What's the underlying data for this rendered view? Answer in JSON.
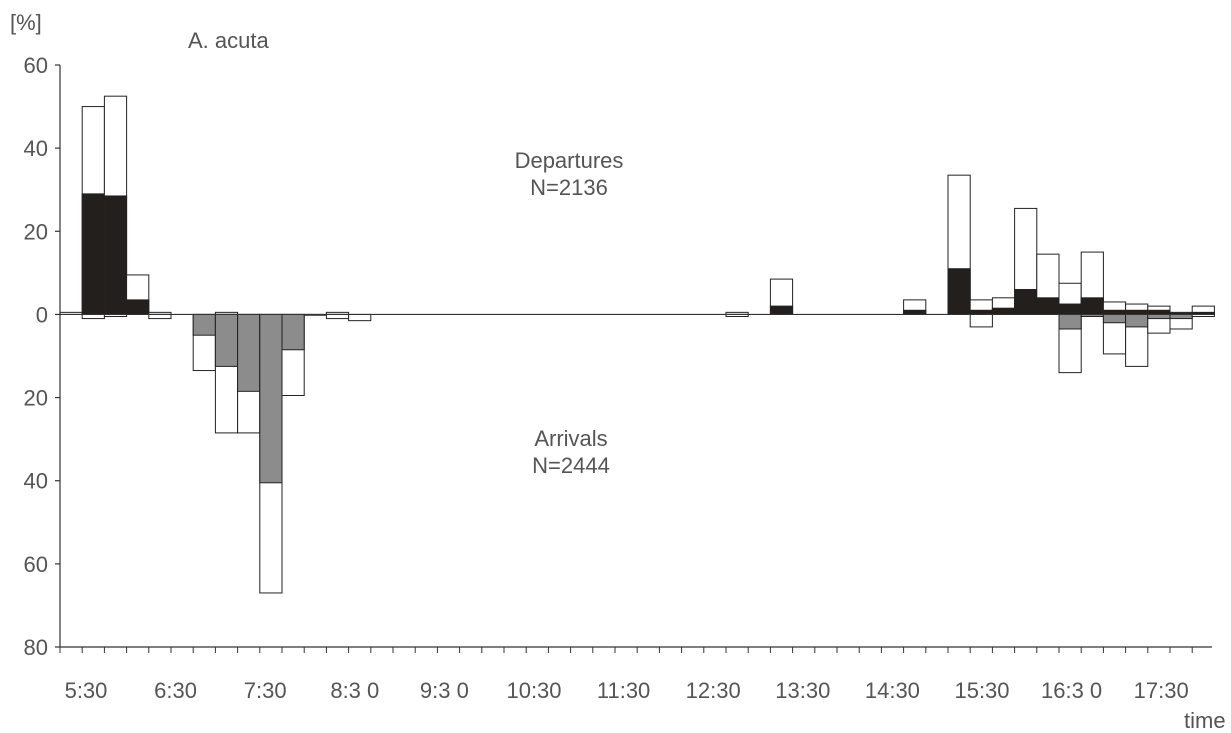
{
  "chart_data": {
    "type": "bar",
    "title": "A. acuta",
    "ylabel": "[%]",
    "xlabel": "time",
    "ylim": [
      -80,
      60
    ],
    "y_ticks": [
      {
        "value": 60,
        "label": "60"
      },
      {
        "value": 40,
        "label": "40"
      },
      {
        "value": 20,
        "label": "20"
      },
      {
        "value": 0,
        "label": "0"
      },
      {
        "value": -20,
        "label": "20"
      },
      {
        "value": -40,
        "label": "40"
      },
      {
        "value": -60,
        "label": "60"
      },
      {
        "value": -80,
        "label": "80"
      }
    ],
    "x_labels": [
      "5:30",
      "6:30",
      "7:30",
      "8:3 0",
      "9:3 0",
      "10:30",
      "11:30",
      "12:30",
      "13:30",
      "14:30",
      "15:30",
      "16:3 0",
      "17:30"
    ],
    "annotations": {
      "departures_label": "Departures",
      "departures_n": "N=2136",
      "arrivals_label": "Arrivals",
      "arrivals_n": "N=2444"
    },
    "series": [
      {
        "values_total": [
          0.5,
          50,
          52.5,
          9.5,
          0.5,
          0,
          0,
          0,
          0,
          0,
          0,
          0.5,
          0,
          0,
          0,
          0,
          0,
          0,
          0,
          0,
          0,
          0,
          0,
          0,
          0,
          0,
          0,
          0,
          0,
          0,
          0,
          0,
          0,
          0,
          0,
          0,
          0,
          0,
          0,
          0,
          0,
          0,
          0,
          0,
          0,
          0,
          0,
          0,
          0,
          0,
          0.5,
          3.5,
          0,
          0,
          0,
          0,
          0,
          0,
          0,
          0,
          0,
          0,
          0,
          0,
          0,
          0,
          0,
          0,
          0,
          0,
          0,
          0,
          0,
          0,
          0,
          0,
          0,
          0,
          0,
          0,
          0,
          0,
          0
        ]
      },
      {
        "values_solid": [
          0,
          29,
          28.5,
          3.5,
          0,
          0,
          0,
          0,
          0,
          0,
          0,
          0,
          0,
          0,
          0,
          0,
          0,
          0,
          0,
          0,
          0,
          0,
          0,
          0,
          0,
          0,
          0,
          0,
          0,
          0,
          0,
          0,
          0,
          0,
          0,
          0,
          0,
          0,
          0,
          0,
          0,
          0,
          0,
          0,
          0,
          0,
          0,
          0,
          0,
          0,
          0,
          0,
          0,
          0,
          0,
          0,
          0,
          0,
          0,
          0,
          0,
          0,
          0,
          0,
          0,
          0,
          0,
          0,
          0,
          0,
          0,
          0,
          0,
          0,
          0,
          0,
          0,
          0,
          0,
          0,
          0,
          0,
          0
        ]
      }
    ],
    "departures": [
      {
        "slot": 0,
        "total": 0.5,
        "solid": 0
      },
      {
        "slot": 1,
        "total": 50,
        "solid": 29
      },
      {
        "slot": 2,
        "total": 52.5,
        "solid": 28.5
      },
      {
        "slot": 3,
        "total": 9.5,
        "solid": 3.5
      },
      {
        "slot": 4,
        "total": 0.5,
        "solid": 0
      },
      {
        "slot": 7,
        "total": 0.5,
        "solid": 0
      },
      {
        "slot": 12,
        "total": 0.5,
        "solid": 0
      },
      {
        "slot": 30,
        "total": 0.5,
        "solid": 0
      },
      {
        "slot": 32,
        "total": 8.5,
        "solid": 2
      },
      {
        "slot": 38,
        "total": 3.5,
        "solid": 1
      },
      {
        "slot": 40,
        "total": 33.5,
        "solid": 11
      },
      {
        "slot": 41,
        "total": 3.5,
        "solid": 1
      },
      {
        "slot": 42,
        "total": 4,
        "solid": 1.5
      },
      {
        "slot": 43,
        "total": 25.5,
        "solid": 6
      },
      {
        "slot": 44,
        "total": 14.5,
        "solid": 4
      },
      {
        "slot": 45,
        "total": 7.5,
        "solid": 2.5
      },
      {
        "slot": 46,
        "total": 15,
        "solid": 4
      },
      {
        "slot": 47,
        "total": 3,
        "solid": 1
      },
      {
        "slot": 48,
        "total": 2.5,
        "solid": 1
      },
      {
        "slot": 49,
        "total": 2,
        "solid": 1
      },
      {
        "slot": 50,
        "total": 0.5,
        "solid": 0.3
      },
      {
        "slot": 51,
        "total": 2,
        "solid": 0.5
      }
    ],
    "arrivals": [
      {
        "slot": 1,
        "total": 1,
        "grey": 0
      },
      {
        "slot": 2,
        "total": 0.5,
        "grey": 0
      },
      {
        "slot": 4,
        "total": 1,
        "grey": 0
      },
      {
        "slot": 6,
        "total": 13.5,
        "grey": 5
      },
      {
        "slot": 7,
        "total": 28.5,
        "grey": 12.5
      },
      {
        "slot": 8,
        "total": 28.5,
        "grey": 18.5
      },
      {
        "slot": 9,
        "total": 67,
        "grey": 40.5
      },
      {
        "slot": 10,
        "total": 19.5,
        "grey": 8.5
      },
      {
        "slot": 11,
        "total": 0,
        "grey": 0
      },
      {
        "slot": 12,
        "total": 1,
        "grey": 0
      },
      {
        "slot": 13,
        "total": 1.5,
        "grey": 0
      },
      {
        "slot": 30,
        "total": 0.5,
        "grey": 0
      },
      {
        "slot": 41,
        "total": 3,
        "grey": 0
      },
      {
        "slot": 45,
        "total": 14,
        "grey": 3.5
      },
      {
        "slot": 46,
        "total": 0.5,
        "grey": 0.5
      },
      {
        "slot": 47,
        "total": 9.5,
        "grey": 2
      },
      {
        "slot": 48,
        "total": 12.5,
        "grey": 3
      },
      {
        "slot": 49,
        "total": 4.5,
        "grey": 1
      },
      {
        "slot": 50,
        "total": 3.5,
        "grey": 1
      },
      {
        "slot": 51,
        "total": 0.5,
        "grey": 0
      }
    ],
    "colors": {
      "solid": "#231f1c",
      "grey": "#8c8c8c",
      "outline": "#222222",
      "text": "#555555"
    }
  }
}
